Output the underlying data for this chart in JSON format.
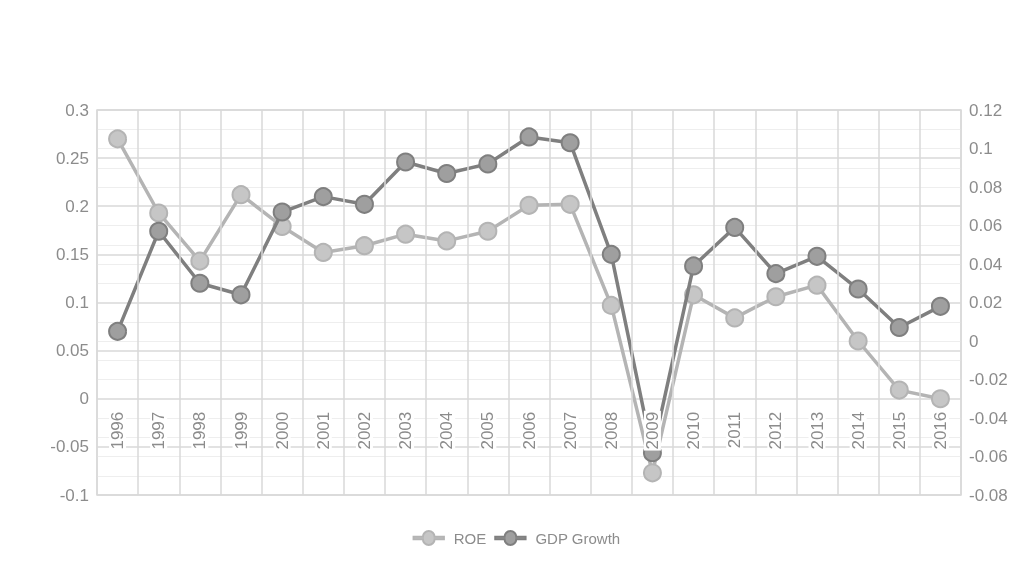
{
  "chart_data": {
    "type": "line",
    "categories": [
      "1996",
      "1997",
      "1998",
      "1999",
      "2000",
      "2001",
      "2002",
      "2003",
      "2004",
      "2005",
      "2006",
      "2007",
      "2008",
      "2009",
      "2010",
      "2011",
      "2012",
      "2013",
      "2014",
      "2015",
      "2016"
    ],
    "series": [
      {
        "name": "ROE",
        "color": "#b4b4b4",
        "values": [
          0.27,
          0.193,
          0.143,
          0.212,
          0.179,
          0.152,
          0.159,
          0.171,
          0.164,
          0.174,
          0.201,
          0.202,
          0.097,
          -0.077,
          0.108,
          0.084,
          0.106,
          0.118,
          0.06,
          0.009,
          0.0
        ]
      },
      {
        "name": "GDP Growth",
        "color": "#7f7f7f",
        "axis": "y2",
        "values": [
          0.005,
          0.057,
          0.03,
          0.024,
          0.067,
          0.075,
          0.071,
          0.093,
          0.087,
          0.092,
          0.106,
          0.103,
          0.045,
          -0.058,
          0.039,
          0.059,
          0.035,
          0.044,
          0.027,
          0.007,
          0.018
        ]
      }
    ],
    "ylim": [
      -0.1,
      0.3
    ],
    "yticks": [
      -0.1,
      -0.05,
      0,
      0.05,
      0.1,
      0.15,
      0.2,
      0.25,
      0.3
    ],
    "y2lim": [
      -0.08,
      0.12
    ],
    "y2ticks": [
      -0.08,
      -0.06,
      -0.04,
      -0.02,
      0,
      0.02,
      0.04,
      0.06,
      0.08,
      0.1,
      0.12
    ],
    "grid": true,
    "legend": "bottom",
    "marker": "circle",
    "line_style": "solid"
  }
}
